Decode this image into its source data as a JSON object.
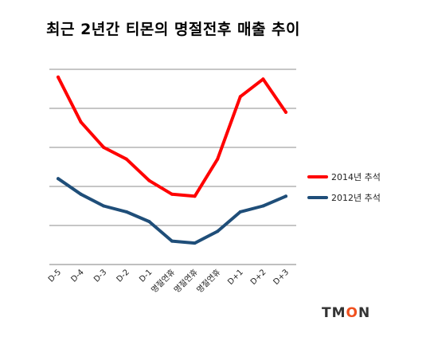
{
  "title": "최근 2년간 티몬의 명절전후 매출 추이",
  "logo": {
    "prefix": "TM",
    "accent": "O",
    "suffix": "N",
    "accent_color": "#f0501e"
  },
  "chart_data": {
    "type": "line",
    "title": "최근 2년간 티몬의 명절전후 매출 추이",
    "categories": [
      "D-5",
      "D-4",
      "D-3",
      "D-2",
      "D-1",
      "명절연휴",
      "명절연휴",
      "명절연휴",
      "D+1",
      "D+2",
      "D+3"
    ],
    "ylim": [
      0,
      5
    ],
    "grid": true,
    "legend": "right",
    "series": [
      {
        "name": "2014년 추석",
        "color": "#ff0000",
        "values": [
          4.8,
          3.65,
          3.0,
          2.7,
          2.15,
          1.8,
          1.75,
          2.7,
          4.3,
          4.75,
          3.9
        ]
      },
      {
        "name": "2012년 추석",
        "color": "#1f4e79",
        "values": [
          2.2,
          1.8,
          1.5,
          1.35,
          1.1,
          0.6,
          0.55,
          0.85,
          1.35,
          1.5,
          1.75
        ]
      }
    ]
  }
}
